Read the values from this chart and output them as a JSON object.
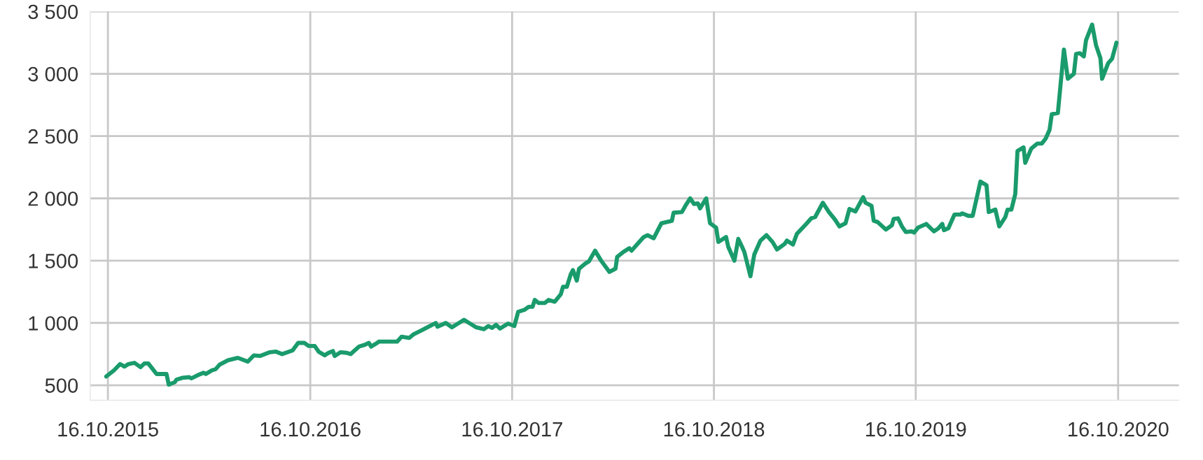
{
  "chart_data": {
    "type": "line",
    "x": [
      "2015-10-13",
      "2015-10-27",
      "2015-11-07",
      "2015-11-15",
      "2015-11-22",
      "2015-12-03",
      "2015-12-14",
      "2015-12-21",
      "2015-12-28",
      "2016-01-12",
      "2016-01-19",
      "2016-01-30",
      "2016-02-03",
      "2016-02-14",
      "2016-02-17",
      "2016-02-28",
      "2016-03-11",
      "2016-03-15",
      "2016-03-26",
      "2016-04-06",
      "2016-04-10",
      "2016-04-21",
      "2016-04-28",
      "2016-05-05",
      "2016-05-20",
      "2016-06-07",
      "2016-06-25",
      "2016-07-06",
      "2016-07-17",
      "2016-08-04",
      "2016-08-15",
      "2016-08-26",
      "2016-09-14",
      "2016-09-24",
      "2016-10-05",
      "2016-10-13",
      "2016-10-24",
      "2016-10-31",
      "2016-11-11",
      "2016-11-18",
      "2016-11-26",
      "2016-11-29",
      "2016-12-10",
      "2016-12-21",
      "2016-12-28",
      "2017-01-12",
      "2017-01-23",
      "2017-01-30",
      "2017-02-03",
      "2017-02-14",
      "2017-02-17",
      "2017-03-04",
      "2017-03-22",
      "2017-03-30",
      "2017-04-13",
      "2017-04-21",
      "2017-05-05",
      "2017-05-16",
      "2017-05-31",
      "2017-06-03",
      "2017-06-18",
      "2017-06-29",
      "2017-07-10",
      "2017-07-21",
      "2017-08-01",
      "2017-08-12",
      "2017-08-26",
      "2017-09-03",
      "2017-09-10",
      "2017-09-17",
      "2017-09-24",
      "2017-10-09",
      "2017-10-20",
      "2017-10-27",
      "2017-11-07",
      "2017-11-15",
      "2017-11-22",
      "2017-11-26",
      "2017-12-03",
      "2017-12-14",
      "2017-12-21",
      "2018-01-01",
      "2018-01-12",
      "2018-01-16",
      "2018-01-23",
      "2018-01-30",
      "2018-02-03",
      "2018-02-10",
      "2018-02-14",
      "2018-02-25",
      "2018-03-04",
      "2018-03-15",
      "2018-03-26",
      "2018-04-10",
      "2018-04-21",
      "2018-04-24",
      "2018-05-05",
      "2018-05-16",
      "2018-05-20",
      "2018-05-31",
      "2018-06-11",
      "2018-06-18",
      "2018-06-29",
      "2018-07-13",
      "2018-08-01",
      "2018-08-04",
      "2018-08-19",
      "2018-08-26",
      "2018-09-03",
      "2018-09-10",
      "2018-09-17",
      "2018-09-21",
      "2018-10-02",
      "2018-10-09",
      "2018-10-20",
      "2018-10-24",
      "2018-11-07",
      "2018-11-11",
      "2018-11-22",
      "2018-11-29",
      "2018-12-06",
      "2018-12-10",
      "2018-12-21",
      "2018-12-28",
      "2019-01-08",
      "2019-01-19",
      "2019-01-30",
      "2019-02-07",
      "2019-02-21",
      "2019-02-25",
      "2019-03-08",
      "2019-03-15",
      "2019-03-30",
      "2019-04-10",
      "2019-04-17",
      "2019-05-01",
      "2019-05-12",
      "2019-05-23",
      "2019-05-31",
      "2019-06-11",
      "2019-06-18",
      "2019-06-29",
      "2019-07-13",
      "2019-07-17",
      "2019-07-28",
      "2019-08-01",
      "2019-08-08",
      "2019-08-23",
      "2019-09-03",
      "2019-09-06",
      "2019-09-14",
      "2019-09-21",
      "2019-09-28",
      "2019-10-09",
      "2019-10-13",
      "2019-10-20",
      "2019-11-04",
      "2019-11-18",
      "2019-11-26",
      "2019-12-03",
      "2019-12-06",
      "2019-12-14",
      "2019-12-25",
      "2020-01-05",
      "2020-01-08",
      "2020-01-19",
      "2020-01-27",
      "2020-02-10",
      "2020-02-21",
      "2020-02-25",
      "2020-03-08",
      "2020-03-15",
      "2020-03-26",
      "2020-03-30",
      "2020-04-06",
      "2020-04-13",
      "2020-04-17",
      "2020-04-28",
      "2020-05-01",
      "2020-05-12",
      "2020-05-23",
      "2020-05-31",
      "2020-06-07",
      "2020-06-14",
      "2020-06-18",
      "2020-06-29",
      "2020-07-10",
      "2020-07-17",
      "2020-07-28",
      "2020-08-01",
      "2020-08-08",
      "2020-08-15",
      "2020-08-19",
      "2020-08-30",
      "2020-09-06",
      "2020-09-14",
      "2020-09-17",
      "2020-09-28",
      "2020-10-05",
      "2020-10-13"
    ],
    "series": [
      {
        "color": "#1a9b6c",
        "values": [
          570,
          620,
          670,
          650,
          670,
          680,
          645,
          675,
          675,
          590,
          590,
          590,
          505,
          525,
          545,
          560,
          565,
          555,
          580,
          600,
          590,
          620,
          630,
          665,
          700,
          720,
          690,
          740,
          735,
          765,
          770,
          750,
          780,
          840,
          840,
          815,
          815,
          770,
          740,
          760,
          775,
          735,
          765,
          760,
          750,
          810,
          825,
          840,
          810,
          840,
          850,
          850,
          850,
          890,
          880,
          910,
          940,
          965,
          1000,
          970,
          1000,
          965,
          995,
          1025,
          995,
          965,
          950,
          975,
          960,
          985,
          955,
          995,
          975,
          1090,
          1105,
          1130,
          1130,
          1185,
          1160,
          1160,
          1185,
          1170,
          1230,
          1290,
          1290,
          1390,
          1425,
          1340,
          1435,
          1475,
          1495,
          1580,
          1500,
          1410,
          1435,
          1530,
          1570,
          1600,
          1580,
          1635,
          1690,
          1705,
          1680,
          1800,
          1820,
          1885,
          1890,
          1945,
          2000,
          1955,
          1960,
          1920,
          2000,
          1800,
          1765,
          1650,
          1690,
          1610,
          1500,
          1675,
          1610,
          1570,
          1375,
          1550,
          1660,
          1705,
          1650,
          1590,
          1635,
          1661,
          1630,
          1715,
          1785,
          1840,
          1850,
          1965,
          1890,
          1830,
          1775,
          1800,
          1915,
          1895,
          2010,
          1965,
          1940,
          1820,
          1810,
          1750,
          1785,
          1835,
          1840,
          1775,
          1730,
          1735,
          1725,
          1765,
          1795,
          1735,
          1760,
          1795,
          1745,
          1760,
          1870,
          1870,
          1880,
          1860,
          1860,
          2135,
          2105,
          1890,
          1910,
          1775,
          1850,
          1910,
          1910,
          2035,
          2380,
          2410,
          2285,
          2400,
          2440,
          2440,
          2480,
          2550,
          2675,
          2685,
          3195,
          2960,
          3000,
          3160,
          3165,
          3140,
          3270,
          3395,
          3230,
          3125,
          2960,
          3085,
          3120,
          3250
        ]
      }
    ],
    "xlim": [
      "2015-09-14",
      "2021-02-03"
    ],
    "xticks": [
      {
        "value": "2015-10-16",
        "label": "16.10.2015"
      },
      {
        "value": "2016-10-16",
        "label": "16.10.2016"
      },
      {
        "value": "2017-10-16",
        "label": "16.10.2017"
      },
      {
        "value": "2018-10-16",
        "label": "16.10.2018"
      },
      {
        "value": "2019-10-16",
        "label": "16.10.2019"
      },
      {
        "value": "2020-10-16",
        "label": "16.10.2020"
      }
    ],
    "ylim": [
      380,
      3500
    ],
    "yticks": [
      {
        "value": 500,
        "label": "500"
      },
      {
        "value": 1000,
        "label": "1 000"
      },
      {
        "value": 1500,
        "label": "1 500"
      },
      {
        "value": 2000,
        "label": "2 000"
      },
      {
        "value": 2500,
        "label": "2 500"
      },
      {
        "value": 3000,
        "label": "3 000"
      },
      {
        "value": 3500,
        "label": "3 500"
      }
    ],
    "grid": true,
    "line_style": "solid",
    "marker": "none",
    "legend": false
  }
}
